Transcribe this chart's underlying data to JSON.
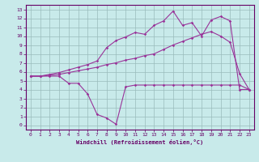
{
  "xlabel": "Windchill (Refroidissement éolien,°C)",
  "bg_color": "#c8eaea",
  "grid_color": "#99bbbb",
  "line_color": "#993399",
  "spine_color": "#660066",
  "xlim": [
    -0.5,
    23.5
  ],
  "ylim": [
    -0.5,
    13.5
  ],
  "xticks": [
    0,
    1,
    2,
    3,
    4,
    5,
    6,
    7,
    8,
    9,
    10,
    11,
    12,
    13,
    14,
    15,
    16,
    17,
    18,
    19,
    20,
    21,
    22,
    23
  ],
  "yticks": [
    0,
    1,
    2,
    3,
    4,
    5,
    6,
    7,
    8,
    9,
    10,
    11,
    12,
    13
  ],
  "line1_x": [
    0,
    1,
    2,
    3,
    4,
    5,
    6,
    7,
    8,
    9,
    10,
    11,
    12,
    13,
    14,
    15,
    16,
    17,
    18,
    19,
    20,
    21,
    22,
    23
  ],
  "line1_y": [
    5.5,
    5.5,
    5.5,
    5.5,
    4.7,
    4.7,
    3.5,
    1.2,
    0.8,
    0.1,
    4.3,
    4.5,
    4.5,
    4.5,
    4.5,
    4.5,
    4.5,
    4.5,
    4.5,
    4.5,
    4.5,
    4.5,
    4.5,
    4.0
  ],
  "line2_x": [
    0,
    1,
    2,
    3,
    4,
    5,
    6,
    7,
    8,
    9,
    10,
    11,
    12,
    13,
    14,
    15,
    16,
    17,
    18,
    19,
    20,
    21,
    22,
    23
  ],
  "line2_y": [
    5.5,
    5.5,
    5.6,
    5.7,
    5.9,
    6.1,
    6.3,
    6.5,
    6.8,
    7.0,
    7.3,
    7.5,
    7.8,
    8.0,
    8.5,
    9.0,
    9.4,
    9.8,
    10.2,
    10.5,
    10.0,
    9.3,
    5.8,
    4.0
  ],
  "line3_x": [
    0,
    1,
    2,
    3,
    4,
    5,
    6,
    7,
    8,
    9,
    10,
    11,
    12,
    13,
    14,
    15,
    16,
    17,
    18,
    19,
    20,
    21,
    22,
    23
  ],
  "line3_y": [
    5.5,
    5.5,
    5.7,
    5.9,
    6.2,
    6.5,
    6.8,
    7.2,
    8.7,
    9.5,
    9.9,
    10.4,
    10.2,
    11.2,
    11.7,
    12.8,
    11.2,
    11.5,
    10.0,
    11.8,
    12.2,
    11.7,
    4.0,
    4.0
  ]
}
